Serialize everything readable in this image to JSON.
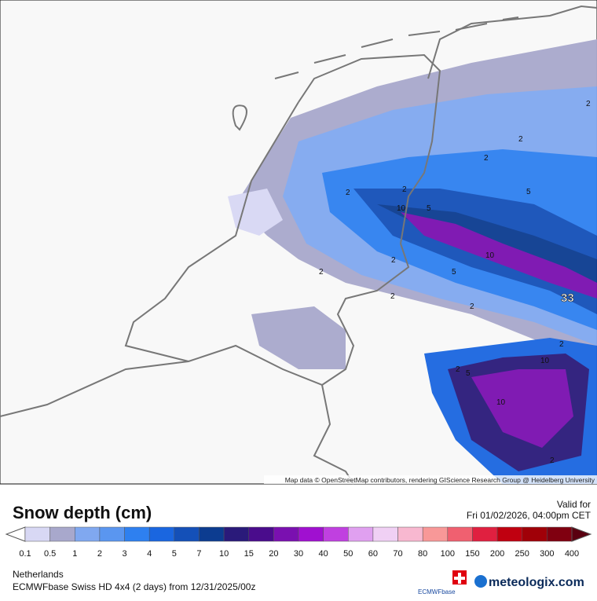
{
  "header": {
    "title": "Snow depth (cm)",
    "valid_label": "Valid for",
    "valid_time": "Fri 01/02/2026, 04:00pm CET"
  },
  "legend": {
    "labels": [
      0.1,
      0.5,
      1,
      2,
      3,
      4,
      5,
      7,
      10,
      15,
      20,
      30,
      40,
      50,
      60,
      70,
      80,
      100,
      150,
      200,
      250,
      300,
      400
    ],
    "colors": [
      "#d8d8f4",
      "#a8a8cc",
      "#80a8f0",
      "#5a96f0",
      "#2e80f0",
      "#1a66e0",
      "#1450b8",
      "#0c3c90",
      "#2a1a7a",
      "#4a0c8c",
      "#7a10b0",
      "#a010d0",
      "#c040e0",
      "#e0a0f0",
      "#f0d0f4",
      "#f8b8d0",
      "#f89898",
      "#f06070",
      "#e02040",
      "#c00010",
      "#a00008",
      "#800010"
    ],
    "end_color": "#5a0010"
  },
  "map": {
    "attribution": "Map data © OpenStreetMap contributors, rendering GIScience Research Group @ Heidelberg University",
    "labels": [
      2,
      2,
      2,
      5,
      5,
      10,
      2,
      2,
      10,
      5,
      2,
      2,
      2,
      33,
      2,
      2,
      5,
      10,
      10,
      2,
      2
    ]
  },
  "footer": {
    "region": "Netherlands",
    "model": "ECMWFbase Swiss HD 4x4 (2 days) from  12/31/2025/00z",
    "brand": "meteologix.com",
    "badge": "ECMWFbase"
  }
}
